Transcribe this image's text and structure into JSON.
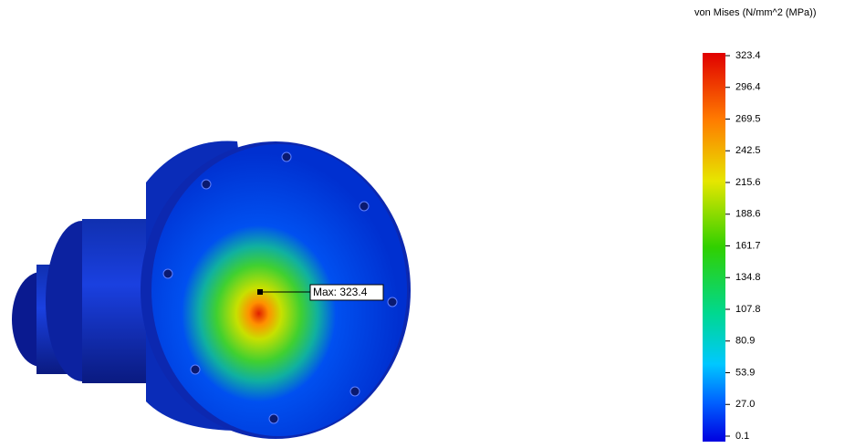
{
  "legend": {
    "title": "von Mises (N/mm^2 (MPa))",
    "ticks": [
      "323.4",
      "296.4",
      "269.5",
      "242.5",
      "215.6",
      "188.6",
      "161.7",
      "134.8",
      "107.8",
      "80.9",
      "53.9",
      "27.0",
      "0.1"
    ]
  },
  "annotation": "Max: 323.4"
}
